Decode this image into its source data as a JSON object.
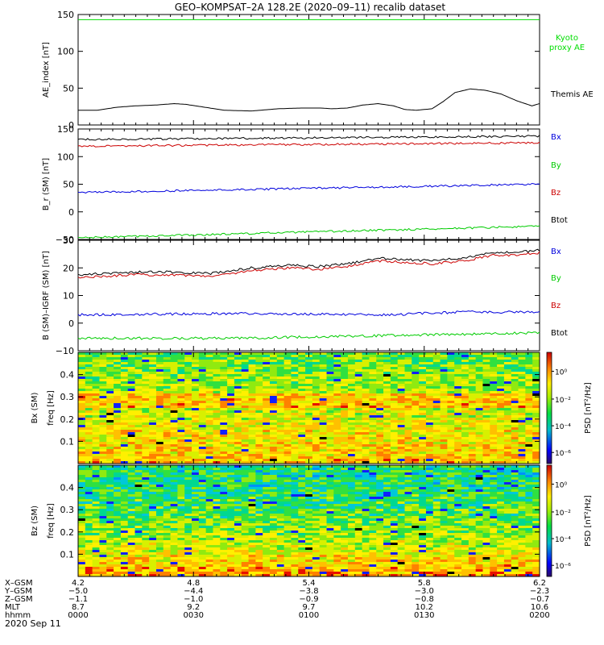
{
  "title": "GEO–KOMPSAT–2A 128.2E (2020–09–11) recalib dataset",
  "footer_date": "2020 Sep 11",
  "colors": {
    "black": "#000000",
    "red": "#cc0000",
    "blue": "#0000dd",
    "green": "#00cc00",
    "kyoto": "#00dd00"
  },
  "chart_data": [
    {
      "type": "line",
      "ylabel": "AE_index [nT]",
      "ylim": [
        0,
        150
      ],
      "yticks": [
        "0",
        "50",
        "100",
        "150"
      ],
      "series": [
        {
          "name": "Kyoto proxy AE",
          "color": "#00dd00",
          "x": [
            0,
            120
          ],
          "values": [
            143,
            143
          ]
        },
        {
          "name": "Themis AE",
          "color": "#000000",
          "x": [
            0,
            5,
            10,
            15,
            20,
            25,
            28,
            33,
            38,
            45,
            52,
            58,
            63,
            66,
            70,
            74,
            78,
            82,
            85,
            88,
            92,
            95,
            98,
            102,
            106,
            110,
            114,
            118,
            120
          ],
          "values": [
            20,
            20,
            24,
            26,
            27,
            29,
            28,
            24,
            20,
            19,
            22,
            23,
            23,
            22,
            23,
            27,
            29,
            26,
            21,
            20,
            22,
            32,
            44,
            49,
            47,
            42,
            33,
            26,
            29
          ]
        }
      ]
    },
    {
      "type": "line",
      "ylabel": "B_r (SM) [nT]",
      "ylim": [
        -50,
        150
      ],
      "yticks": [
        "−50",
        "0",
        "50",
        "100",
        "150"
      ],
      "series": [
        {
          "name": "Bx",
          "color": "#0000dd",
          "x": [
            0,
            120
          ],
          "values": [
            35,
            50
          ]
        },
        {
          "name": "By",
          "color": "#00cc00",
          "x": [
            0,
            120
          ],
          "values": [
            -47,
            -26
          ]
        },
        {
          "name": "Bz",
          "color": "#cc0000",
          "x": [
            0,
            120
          ],
          "values": [
            119,
            125
          ]
        },
        {
          "name": "Btot",
          "color": "#000000",
          "x": [
            0,
            120
          ],
          "values": [
            131,
            137
          ]
        }
      ]
    },
    {
      "type": "line",
      "ylabel": "B (SM)–IGRF (SM) [nT]",
      "ylim": [
        -10,
        30
      ],
      "yticks": [
        "−10",
        "0",
        "10",
        "20",
        "30"
      ],
      "series": [
        {
          "name": "Bx",
          "color": "#0000dd",
          "x": [
            0,
            40,
            80,
            100,
            120
          ],
          "values": [
            3,
            3.5,
            3,
            4,
            4
          ]
        },
        {
          "name": "By",
          "color": "#00cc00",
          "x": [
            0,
            40,
            80,
            120
          ],
          "values": [
            -5.5,
            -5.5,
            -4.5,
            -3.5
          ]
        },
        {
          "name": "Bz",
          "color": "#cc0000",
          "x": [
            0,
            15,
            25,
            35,
            45,
            55,
            62,
            70,
            78,
            85,
            92,
            100,
            108,
            114,
            120
          ],
          "values": [
            16.5,
            17.5,
            17.5,
            17,
            19,
            20,
            19.5,
            20.5,
            22.5,
            22,
            21.5,
            22.5,
            24.5,
            24.5,
            25.5
          ]
        },
        {
          "name": "Btot",
          "color": "#000000",
          "x": [
            0,
            15,
            25,
            35,
            45,
            55,
            62,
            70,
            78,
            85,
            92,
            100,
            108,
            114,
            120
          ],
          "values": [
            17.5,
            18.5,
            18.5,
            18,
            20,
            21,
            20.5,
            21.5,
            23.5,
            23,
            22.5,
            23.5,
            25.5,
            25.5,
            26.5
          ]
        }
      ]
    },
    {
      "type": "heatmap",
      "ylabel": "Bx (SM) freq [Hz]",
      "colorbar_label": "PSD [nT²/Hz]",
      "yticks": [
        "0.1",
        "0.2",
        "0.3",
        "0.4"
      ],
      "colorbar_ticks": [
        "10⁰",
        "10⁻²",
        "10⁻⁴",
        "10⁻⁶"
      ]
    },
    {
      "type": "heatmap",
      "ylabel": "Bz (SM) freq [Hz]",
      "colorbar_label": "PSD [nT²/Hz]",
      "yticks": [
        "0.1",
        "0.2",
        "0.3",
        "0.4"
      ],
      "colorbar_ticks": [
        "10⁰",
        "10⁻²",
        "10⁻⁴",
        "10⁻⁶"
      ]
    }
  ],
  "ephemeris": {
    "labels": [
      "X–GSM",
      "Y–GSM",
      "Z–GSM",
      "MLT",
      "hhmm"
    ],
    "columns": [
      [
        "4.2",
        "−5.0",
        "−1.1",
        "8.7",
        "0000"
      ],
      [
        "4.8",
        "−4.4",
        "−1.0",
        "9.2",
        "0030"
      ],
      [
        "5.4",
        "−3.8",
        "−0.9",
        "9.7",
        "0100"
      ],
      [
        "5.8",
        "−3.0",
        "−0.8",
        "10.2",
        "0130"
      ],
      [
        "6.2",
        "−2.3",
        "−0.7",
        "10.6",
        "0200"
      ]
    ]
  }
}
